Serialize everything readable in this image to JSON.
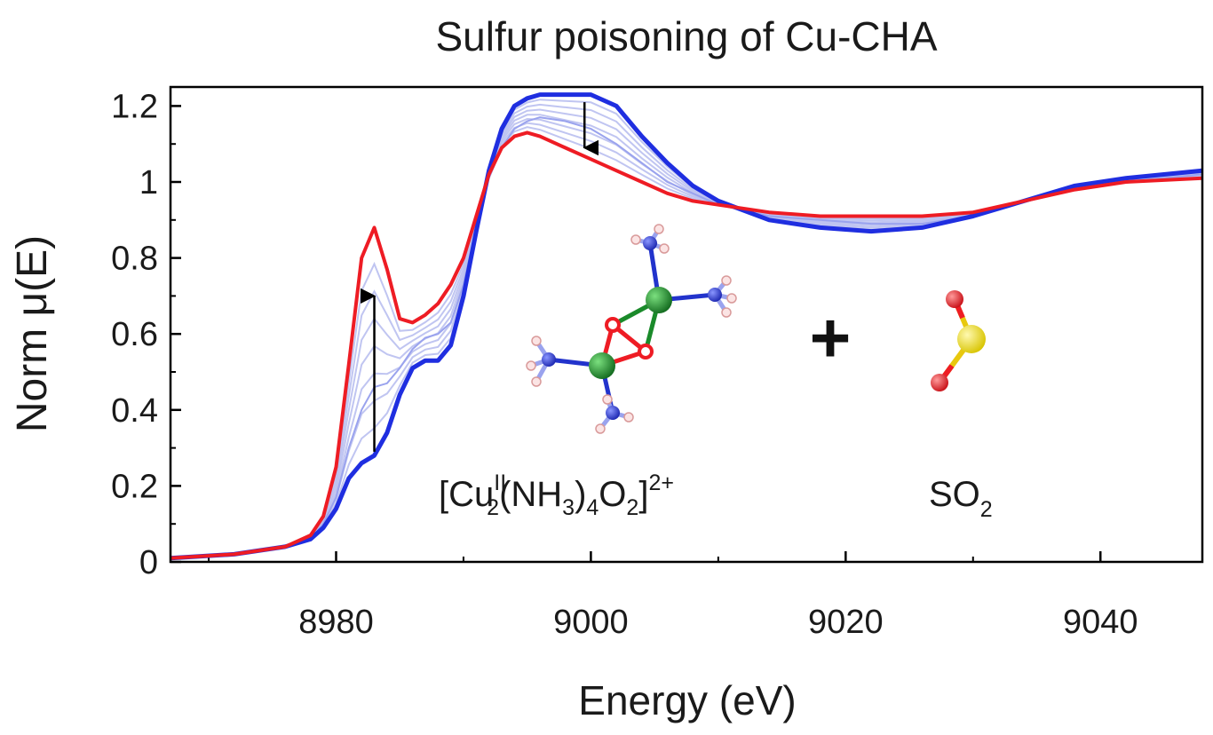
{
  "chart_data": {
    "type": "line",
    "title": "Sulfur poisoning of Cu-CHA",
    "xlabel": "Energy (eV)",
    "ylabel": "Norm μ(E)",
    "xlim": [
      8967,
      9048
    ],
    "ylim": [
      0,
      1.25
    ],
    "x_ticks": [
      8980,
      9000,
      9020,
      9040
    ],
    "x_tick_labels": [
      "8980",
      "9000",
      "9020",
      "9040"
    ],
    "y_ticks": [
      0,
      0.2,
      0.4,
      0.6,
      0.8,
      1.0,
      1.2
    ],
    "y_tick_labels": [
      "0",
      "0.2",
      "0.4",
      "0.6",
      "0.8",
      "1",
      "1.2"
    ],
    "grid": false,
    "legend": "none",
    "colors": {
      "initial": "#1f2ee0",
      "intermediate": "#b9bff0",
      "final": "#ee1c24",
      "arrow": "#000000"
    },
    "series": [
      {
        "role": "initial",
        "color": "#1f2ee0",
        "x": [
          8967,
          8972,
          8976,
          8978,
          8979,
          8980,
          8981,
          8982,
          8983,
          8984,
          8985,
          8986,
          8987,
          8988,
          8989,
          8990,
          8991,
          8992,
          8993,
          8994,
          8995,
          8996,
          8998,
          9000,
          9002,
          9004,
          9006,
          9008,
          9010,
          9014,
          9018,
          9022,
          9026,
          9030,
          9034,
          9038,
          9042,
          9048
        ],
        "y": [
          0.01,
          0.02,
          0.04,
          0.06,
          0.09,
          0.14,
          0.22,
          0.26,
          0.28,
          0.34,
          0.44,
          0.51,
          0.53,
          0.53,
          0.57,
          0.7,
          0.87,
          1.03,
          1.14,
          1.2,
          1.22,
          1.23,
          1.23,
          1.23,
          1.2,
          1.12,
          1.05,
          0.99,
          0.95,
          0.9,
          0.88,
          0.87,
          0.88,
          0.91,
          0.95,
          0.99,
          1.01,
          1.03
        ]
      },
      {
        "role": "intermediate",
        "color": "#b9bff0",
        "x": [
          8967,
          8972,
          8976,
          8978,
          8979,
          8980,
          8981,
          8982,
          8983,
          8984,
          8985,
          8986,
          8987,
          8988,
          8989,
          8990,
          8991,
          8992,
          8993,
          8994,
          8995,
          8996,
          8998,
          9000,
          9002,
          9004,
          9006,
          9008,
          9010,
          9014,
          9018,
          9022,
          9026,
          9030,
          9034,
          9038,
          9042,
          9048
        ],
        "y": [
          0.01,
          0.02,
          0.04,
          0.06,
          0.1,
          0.17,
          0.3,
          0.4,
          0.46,
          0.47,
          0.51,
          0.56,
          0.59,
          0.6,
          0.63,
          0.73,
          0.88,
          1.01,
          1.09,
          1.14,
          1.16,
          1.17,
          1.16,
          1.14,
          1.1,
          1.05,
          1.0,
          0.97,
          0.94,
          0.91,
          0.9,
          0.89,
          0.89,
          0.91,
          0.95,
          0.98,
          1.0,
          1.02
        ]
      },
      {
        "role": "final",
        "color": "#ee1c24",
        "x": [
          8967,
          8972,
          8976,
          8978,
          8979,
          8980,
          8981,
          8982,
          8983,
          8984,
          8985,
          8986,
          8987,
          8988,
          8989,
          8990,
          8991,
          8992,
          8993,
          8994,
          8995,
          8996,
          8998,
          9000,
          9002,
          9004,
          9006,
          9008,
          9010,
          9014,
          9018,
          9022,
          9026,
          9030,
          9034,
          9038,
          9042,
          9048
        ],
        "y": [
          0.01,
          0.02,
          0.04,
          0.07,
          0.12,
          0.25,
          0.52,
          0.8,
          0.88,
          0.77,
          0.64,
          0.63,
          0.65,
          0.68,
          0.73,
          0.8,
          0.91,
          1.02,
          1.09,
          1.12,
          1.13,
          1.12,
          1.09,
          1.06,
          1.03,
          1.0,
          0.97,
          0.95,
          0.94,
          0.92,
          0.91,
          0.91,
          0.91,
          0.92,
          0.95,
          0.98,
          1.0,
          1.01
        ]
      }
    ],
    "annotations": [
      {
        "type": "arrow",
        "direction": "up",
        "x": 8983,
        "from": 0.29,
        "to": 0.7
      },
      {
        "type": "arrow",
        "direction": "down",
        "x": 8999.5,
        "from": 1.21,
        "to": 1.09
      }
    ],
    "inset": {
      "complex_label": {
        "open": "[Cu",
        "sup1": "II",
        "sub1": "2",
        "mid1": "(NH",
        "sub2": "3",
        "mid2": ")",
        "sub3": "4",
        "mid3": "O",
        "sub4": "2",
        "close": "]",
        "sup2": "2+"
      },
      "plus": "+",
      "molecule_label": {
        "base": "SO",
        "sub": "2"
      },
      "atom_colors": {
        "Cu": "#1a8a2a",
        "N": "#2233cc",
        "O": "#ee1c24",
        "H": "#f4c7c7",
        "S": "#f2e21c"
      }
    }
  }
}
